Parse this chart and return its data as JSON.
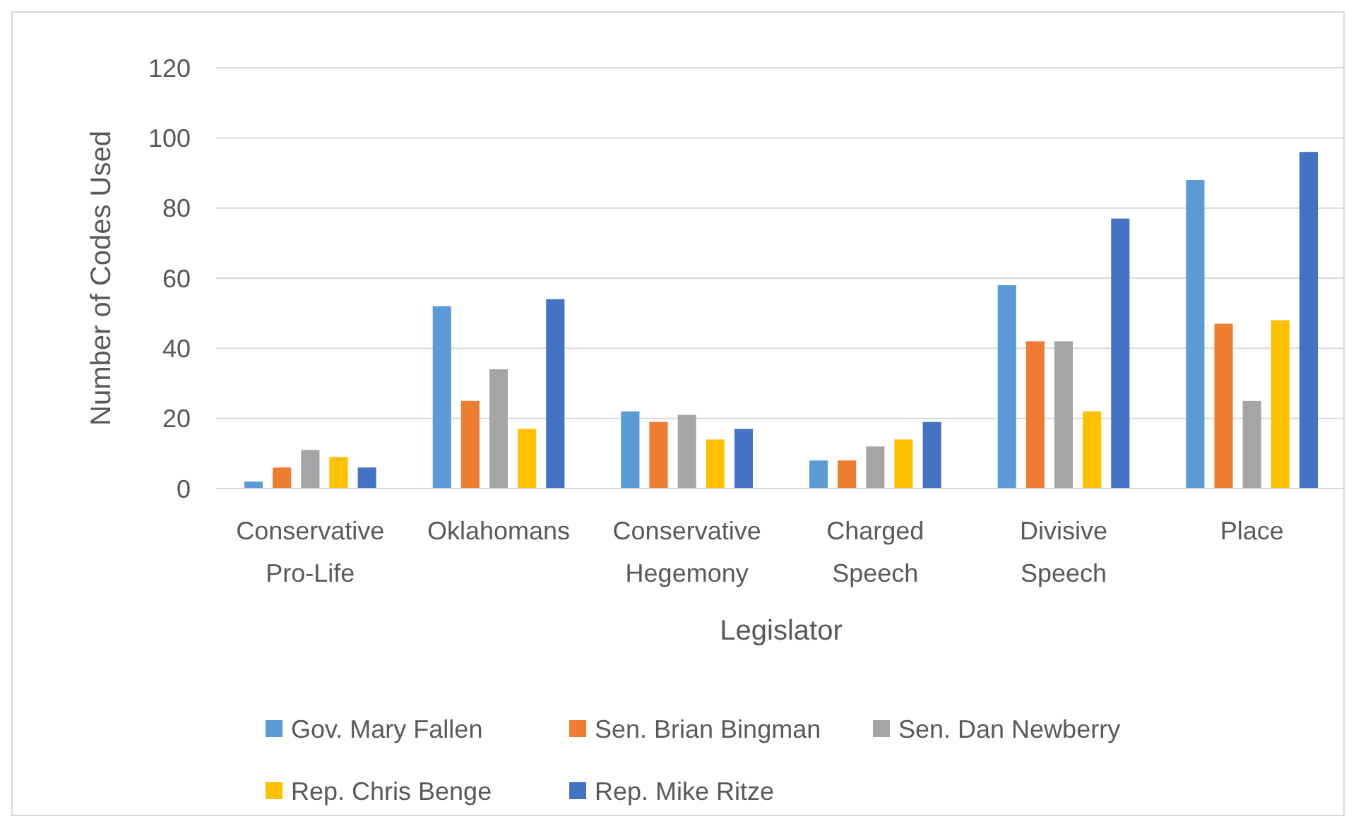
{
  "chart_data": {
    "type": "bar",
    "xlabel": "Legislator",
    "ylabel": "Number of Codes Used",
    "categories": [
      "Conservative Pro-Life",
      "Oklahomans",
      "Conservative Hegemony",
      "Charged Speech",
      "Divisive Speech",
      "Place"
    ],
    "series": [
      {
        "name": "Gov. Mary Fallen",
        "color": "#5b9bd5",
        "values": [
          2,
          52,
          22,
          8,
          58,
          88
        ]
      },
      {
        "name": "Sen. Brian Bingman",
        "color": "#ed7d31",
        "values": [
          6,
          25,
          19,
          8,
          42,
          47
        ]
      },
      {
        "name": "Sen. Dan Newberry",
        "color": "#a5a5a5",
        "values": [
          11,
          34,
          21,
          12,
          42,
          25
        ]
      },
      {
        "name": "Rep. Chris Benge",
        "color": "#ffc000",
        "values": [
          9,
          17,
          14,
          14,
          22,
          48
        ]
      },
      {
        "name": "Rep. Mike Ritze",
        "color": "#4472c4",
        "values": [
          6,
          54,
          17,
          19,
          77,
          96
        ]
      }
    ],
    "ylim": [
      0,
      120
    ],
    "yticks": [
      0,
      20,
      40,
      60,
      80,
      100,
      120
    ],
    "grid": "y",
    "legend": "bottom"
  }
}
